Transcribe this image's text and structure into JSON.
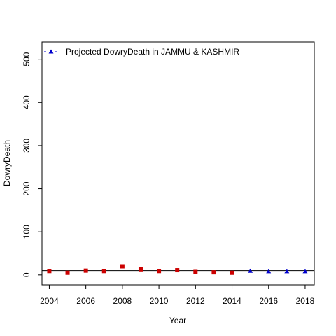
{
  "chart_data": {
    "type": "scatter",
    "title": "",
    "xlabel": "Year",
    "ylabel": "DowryDeath",
    "xlim": [
      2003.6,
      2018.5
    ],
    "ylim": [
      -23,
      540
    ],
    "xticks": [
      2004,
      2006,
      2008,
      2010,
      2012,
      2014,
      2016,
      2018
    ],
    "yticks": [
      0,
      100,
      200,
      300,
      400,
      500
    ],
    "legend": {
      "position": "top-left",
      "label": "Projected  DowryDeath  in  JAMMU & KASHMIR"
    },
    "series": [
      {
        "marker": "square",
        "color": "#cc0000",
        "x": [
          2004,
          2005,
          2006,
          2007,
          2008,
          2009,
          2010,
          2011,
          2012,
          2013,
          2014
        ],
        "y": [
          9,
          5,
          10,
          9,
          20,
          13,
          9,
          11,
          7,
          6,
          5
        ]
      },
      {
        "name": "Projected  DowryDeath  in  JAMMU & KASHMIR",
        "marker": "triangle",
        "color": "#0000cc",
        "x": [
          2015,
          2016,
          2017,
          2018
        ],
        "y": [
          9,
          8,
          8,
          8
        ]
      }
    ],
    "reference_line": {
      "y": 10,
      "color": "#000000"
    }
  }
}
